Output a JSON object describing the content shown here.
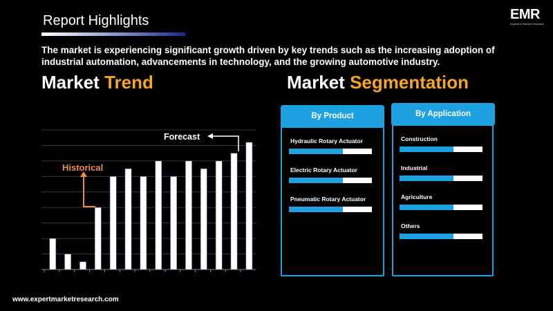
{
  "header": {
    "title": "Report Highlights",
    "logo_text": "EMR",
    "logo_tagline": "Experts in Market Research"
  },
  "summary": "The market is experiencing significant growth driven by key trends such as the increasing adoption of industrial automation, advancements in technology, and the growing automotive industry.",
  "trend": {
    "heading_word1": "Market",
    "heading_word2": "Trend",
    "historical_label": "Historical",
    "forecast_label": "Forecast"
  },
  "segmentation": {
    "heading_word1": "Market",
    "heading_word2": "Segmentation",
    "by_product": {
      "title": "By Product",
      "items": [
        {
          "label": "Hydraulic Rotary Actuator",
          "level": 0.65
        },
        {
          "label": "Electric Rotary Actuator",
          "level": 0.65
        },
        {
          "label": "Pneumatic Rotary Actuator",
          "level": 0.65
        }
      ]
    },
    "by_application": {
      "title": "By Application",
      "items": [
        {
          "label": "Construction",
          "level": 0.65
        },
        {
          "label": "Industrial",
          "level": 0.65
        },
        {
          "label": "Agriculture",
          "level": 0.65
        },
        {
          "label": "Others",
          "level": 0.65
        }
      ]
    }
  },
  "footer": {
    "website": "www.expertmarketresearch.com"
  },
  "colors": {
    "accent": "#f5a623",
    "brand_blue": "#1da1e0",
    "historical_arrow": "#f08a4b"
  },
  "chart_data": {
    "type": "bar",
    "values": [
      2,
      1,
      0.5,
      4,
      6,
      6.5,
      6,
      7,
      6,
      7,
      6.5,
      7,
      7.5,
      8.2
    ],
    "ylim": [
      0,
      9
    ],
    "grid": true,
    "annotations": [
      "Historical",
      "Forecast"
    ]
  }
}
